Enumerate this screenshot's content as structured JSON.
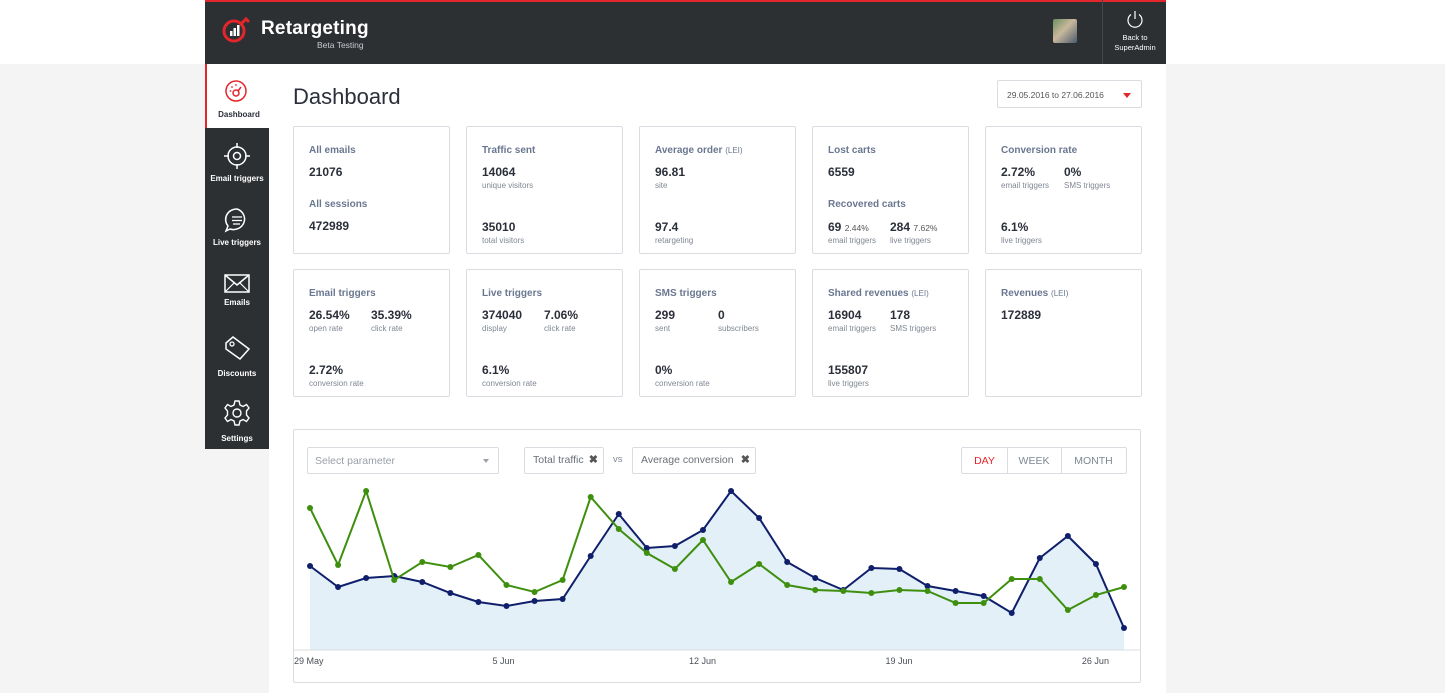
{
  "header": {
    "app_name": "Retargeting",
    "subtitle": "Beta Testing",
    "back_label_line1": "Back to",
    "back_label_line2": "SuperAdmin"
  },
  "sidebar": {
    "items": [
      {
        "label": "Dashboard",
        "icon": "dashboard-gauge-icon",
        "active": true
      },
      {
        "label": "Email triggers",
        "icon": "crosshair-icon",
        "active": false
      },
      {
        "label": "Live triggers",
        "icon": "chat-bubble-icon",
        "active": false
      },
      {
        "label": "Emails",
        "icon": "envelope-icon",
        "active": false
      },
      {
        "label": "Discounts",
        "icon": "tag-icon",
        "active": false
      },
      {
        "label": "Settings",
        "icon": "gear-icon",
        "active": false
      }
    ]
  },
  "page": {
    "title": "Dashboard",
    "date_range": "29.05.2016 to 27.06.2016"
  },
  "cards": {
    "all_emails": {
      "title": "All emails",
      "value": "21076",
      "title2": "All sessions",
      "value2": "472989"
    },
    "traffic_sent": {
      "title": "Traffic sent",
      "value": "14064",
      "sub": "unique visitors",
      "value2": "35010",
      "sub2": "total visitors"
    },
    "average_order": {
      "title": "Average order",
      "unit": "(LEI)",
      "value": "96.81",
      "sub": "site",
      "value2": "97.4",
      "sub2": "retargeting"
    },
    "lost_carts": {
      "title": "Lost carts",
      "value": "6559",
      "title2": "Recovered carts",
      "email_value": "69",
      "email_pct": "2.44%",
      "email_sub": "email triggers",
      "live_value": "284",
      "live_pct": "7.62%",
      "live_sub": "live triggers"
    },
    "conversion_rate": {
      "title": "Conversion rate",
      "value_a": "2.72%",
      "sub_a": "email triggers",
      "value_b": "0%",
      "sub_b": "SMS triggers",
      "value_c": "6.1%",
      "sub_c": "live triggers"
    },
    "email_triggers": {
      "title": "Email triggers",
      "value_a": "26.54%",
      "sub_a": "open rate",
      "value_b": "35.39%",
      "sub_b": "click rate",
      "value_c": "2.72%",
      "sub_c": "conversion rate"
    },
    "live_triggers": {
      "title": "Live triggers",
      "value_a": "374040",
      "sub_a": "display",
      "value_b": "7.06%",
      "sub_b": "click rate",
      "value_c": "6.1%",
      "sub_c": "conversion rate"
    },
    "sms_triggers": {
      "title": "SMS triggers",
      "value_a": "299",
      "sub_a": "sent",
      "value_b": "0",
      "sub_b": "subscribers",
      "value_c": "0%",
      "sub_c": "conversion rate"
    },
    "shared_revenues": {
      "title": "Shared revenues",
      "unit": "(LEI)",
      "value_a": "16904",
      "sub_a": "email triggers",
      "value_b": "178",
      "sub_b": "SMS triggers",
      "value_c": "155807",
      "sub_c": "live triggers"
    },
    "revenues": {
      "title": "Revenues",
      "unit": "(LEI)",
      "value": "172889"
    }
  },
  "chart_controls": {
    "select_placeholder": "Select parameter",
    "chip1": "Total traffic",
    "vs": "vs",
    "chip2": "Average conversion",
    "periods": [
      "DAY",
      "WEEK",
      "MONTH"
    ],
    "active_period": "DAY"
  },
  "colors": {
    "accent": "#e3262b",
    "navy_series": "#0f1f6b",
    "green_series": "#3f8f0f",
    "area_fill": "#e3f0f8"
  },
  "chart_data": {
    "type": "line",
    "x_tick_labels": [
      "29 May",
      "5 Jun",
      "12 Jun",
      "19 Jun",
      "26 Jun"
    ],
    "grid": false,
    "y_axis_visible": false,
    "series": [
      {
        "values": [
          84,
          63,
          72,
          74,
          68,
          57,
          48,
          44,
          49,
          51,
          94,
          136,
          102,
          104,
          120,
          159,
          132,
          88,
          72,
          60,
          82,
          81,
          64,
          59,
          54,
          37,
          92,
          114,
          86,
          22
        ],
        "relative": true
      },
      {
        "values": [
          142,
          85,
          159,
          70,
          88,
          83,
          95,
          65,
          58,
          70,
          153,
          121,
          97,
          81,
          110,
          68,
          86,
          65,
          60,
          59,
          57,
          60,
          59,
          47,
          47,
          71,
          71,
          40,
          55,
          63
        ],
        "relative": true
      }
    ]
  }
}
